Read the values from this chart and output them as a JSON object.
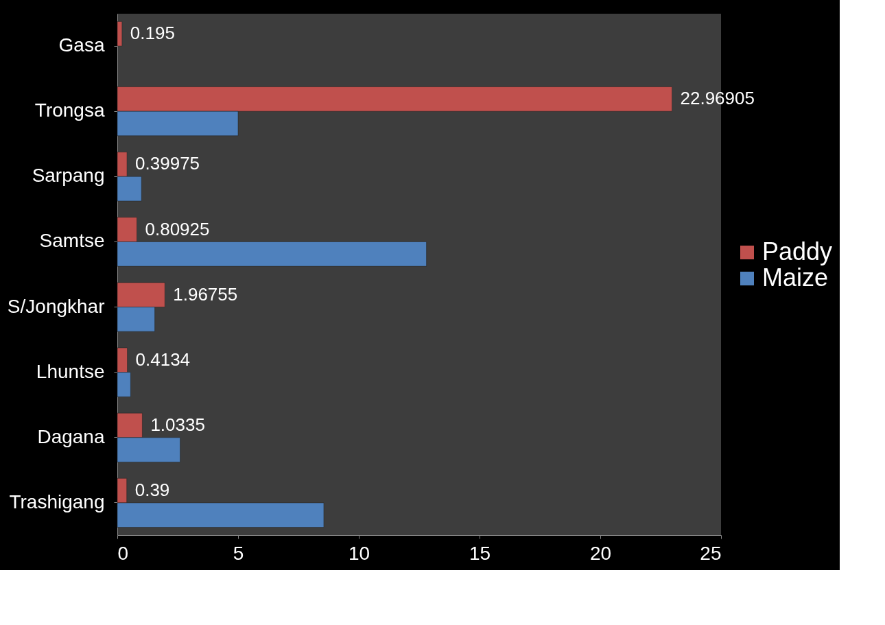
{
  "chart_data": {
    "type": "bar",
    "orientation": "horizontal",
    "categories": [
      "Gasa",
      "Trongsa",
      "Sarpang",
      "Samtse",
      "S/Jongkhar",
      "Lhuntse",
      "Dagana",
      "Trashigang"
    ],
    "series": [
      {
        "name": "Paddy",
        "color": "#c0504d",
        "values": [
          0.195,
          22.96905,
          0.39975,
          0.80925,
          1.96755,
          0.4134,
          1.0335,
          0.39
        ],
        "value_labels": [
          "0.195",
          "22.96905",
          "0.39975",
          "0.80925",
          "1.96755",
          "0.4134",
          "1.0335",
          "0.39"
        ]
      },
      {
        "name": "Maize",
        "color": "#4f81bd",
        "values": [
          null,
          5.0,
          1.0,
          12.8,
          1.55,
          0.55,
          2.6,
          8.55
        ]
      }
    ],
    "xlim": [
      0,
      25
    ],
    "xticks": [
      0,
      5,
      10,
      15,
      20,
      25
    ],
    "grid": false,
    "legend": "right"
  }
}
